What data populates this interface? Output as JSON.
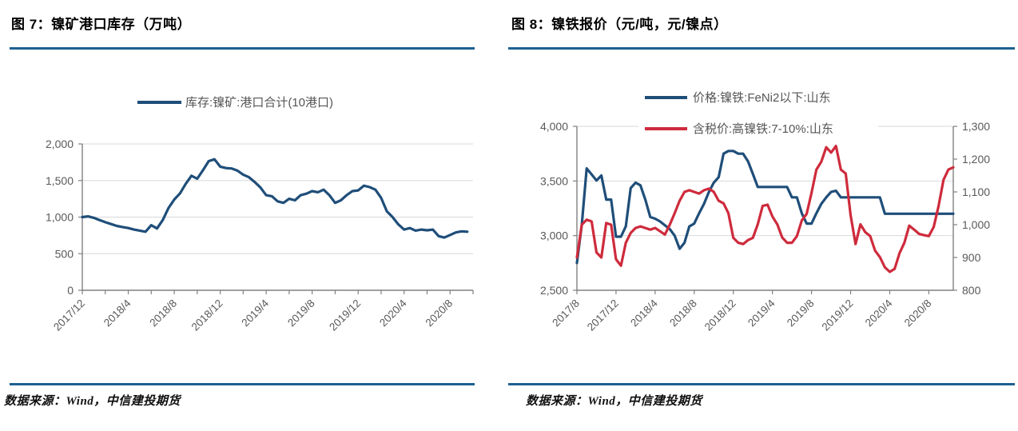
{
  "chart_data": [
    {
      "id": "figure7",
      "type": "line",
      "title": "图 7：镍矿港口库存（万吨）",
      "source": "数据来源：Wind，中信建投期货",
      "legend_position": "top",
      "grid": "horizontal",
      "x_tick_labels": [
        "2017/12",
        "2018/4",
        "2018/8",
        "2018/12",
        "2019/4",
        "2019/8",
        "2019/12",
        "2020/4",
        "2020/8"
      ],
      "ylim": [
        0,
        2000
      ],
      "y_ticks_left": [
        "0",
        "500",
        "1,000",
        "1,500",
        "2,000"
      ],
      "series": [
        {
          "name": "库存:镍矿:港口合计(10港口)",
          "color": "#1F4E79",
          "axis": "left",
          "values": [
            1000,
            1010,
            990,
            960,
            930,
            905,
            880,
            865,
            850,
            830,
            815,
            800,
            890,
            845,
            960,
            1125,
            1240,
            1325,
            1455,
            1565,
            1525,
            1640,
            1765,
            1790,
            1690,
            1670,
            1665,
            1635,
            1580,
            1545,
            1480,
            1405,
            1300,
            1285,
            1215,
            1195,
            1250,
            1230,
            1300,
            1320,
            1355,
            1340,
            1375,
            1300,
            1195,
            1230,
            1300,
            1355,
            1365,
            1430,
            1410,
            1375,
            1265,
            1080,
            1000,
            900,
            830,
            850,
            815,
            830,
            820,
            830,
            740,
            720,
            755,
            790,
            805,
            800
          ]
        }
      ]
    },
    {
      "id": "figure8",
      "type": "line",
      "title": "图 8：镍铁报价（元/吨，元/镍点）",
      "source": "数据来源：Wind，中信建投期货",
      "legend_position": "top",
      "grid": "horizontal",
      "x_tick_labels": [
        "2017/8",
        "2017/12",
        "2018/4",
        "2018/8",
        "2018/12",
        "2019/4",
        "2019/8",
        "2019/12",
        "2020/4",
        "2020/8"
      ],
      "ylim_left": [
        2500,
        4000
      ],
      "ylim_right": [
        800,
        1300
      ],
      "y_ticks_left": [
        "2,500",
        "3,000",
        "3,500",
        "4,000"
      ],
      "y_ticks_right": [
        "800",
        "900",
        "1,000",
        "1,100",
        "1,200",
        "1,300"
      ],
      "series": [
        {
          "name": "价格:镍铁:FeNi2以下:山东",
          "color": "#1F4E79",
          "axis": "left",
          "values": [
            2750,
            3100,
            3615,
            3560,
            3505,
            3550,
            3330,
            3330,
            2990,
            2990,
            3085,
            3435,
            3485,
            3460,
            3330,
            3170,
            3155,
            3130,
            3095,
            3060,
            3000,
            2880,
            2935,
            3085,
            3110,
            3205,
            3290,
            3400,
            3485,
            3535,
            3750,
            3775,
            3775,
            3750,
            3750,
            3680,
            3565,
            3445,
            3445,
            3445,
            3445,
            3445,
            3445,
            3445,
            3350,
            3350,
            3205,
            3110,
            3110,
            3205,
            3290,
            3350,
            3400,
            3410,
            3350,
            3350,
            3350,
            3350,
            3350,
            3350,
            3350,
            3350,
            3350,
            3200,
            3200,
            3200,
            3200,
            3200,
            3200,
            3200,
            3200,
            3200,
            3200,
            3200,
            3200,
            3200,
            3200,
            3200
          ]
        },
        {
          "name": "含税价:高镍铁:7-10%:山东",
          "color": "#CE2B3C",
          "axis": "right",
          "values": [
            900,
            1000,
            1015,
            1010,
            915,
            900,
            1005,
            1000,
            895,
            875,
            945,
            975,
            990,
            995,
            990,
            985,
            990,
            980,
            970,
            1000,
            1035,
            1073,
            1100,
            1105,
            1100,
            1095,
            1105,
            1110,
            1100,
            1073,
            1065,
            1035,
            960,
            945,
            941,
            953,
            960,
            1001,
            1057,
            1061,
            1025,
            1001,
            961,
            945,
            945,
            965,
            1013,
            1033,
            1097,
            1168,
            1192,
            1236,
            1220,
            1240,
            1168,
            1156,
            1029,
            941,
            1001,
            977,
            965,
            921,
            901,
            870,
            856,
            865,
            913,
            945,
            997,
            985,
            972,
            968,
            965,
            993,
            1057,
            1137,
            1168,
            1175
          ]
        }
      ]
    }
  ],
  "style": {
    "accent_rule_color": "#1E608F",
    "axis_color": "#808080",
    "grid_color": "#D9D9D9",
    "label_color": "#595959",
    "blue_series_color": "#1F4E79",
    "red_series_color": "#CE2B3C"
  }
}
